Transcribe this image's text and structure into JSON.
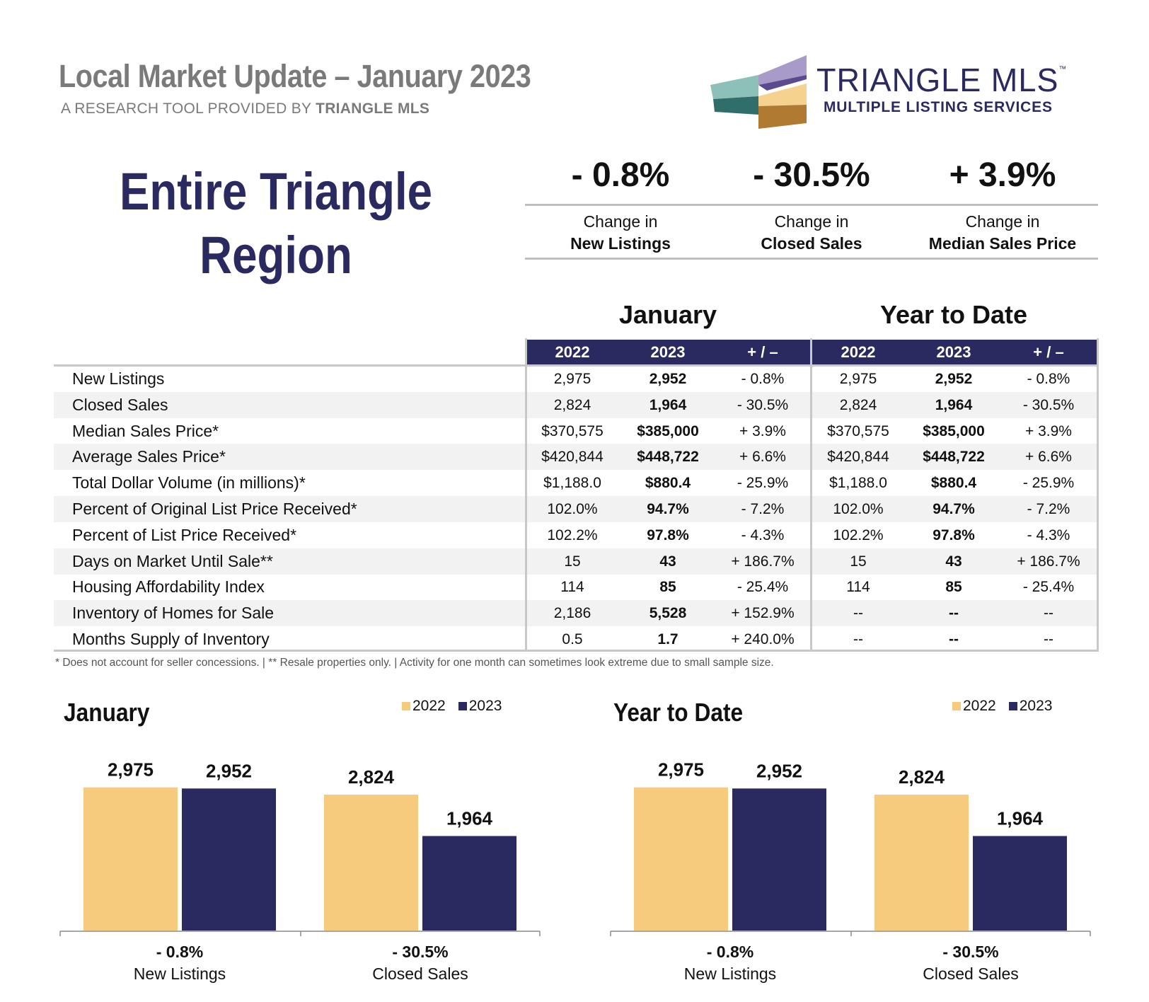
{
  "header": {
    "title": "Local Market Update – January 2023",
    "subtitle_prefix": "A RESEARCH TOOL PROVIDED BY ",
    "subtitle_brand": "TRIANGLE MLS"
  },
  "logo": {
    "name": "TRIANGLE MLS",
    "tm": "™",
    "tagline": "MULTIPLE LISTING SERVICES"
  },
  "region": {
    "line1": "Entire Triangle",
    "line2": "Region"
  },
  "summary": [
    {
      "value": "- 0.8%",
      "label_top": "Change in",
      "label_bottom": "New Listings"
    },
    {
      "value": "- 30.5%",
      "label_top": "Change in",
      "label_bottom": "Closed Sales"
    },
    {
      "value": "+ 3.9%",
      "label_top": "Change in",
      "label_bottom": "Median Sales Price"
    }
  ],
  "table": {
    "group_headers": [
      "January",
      "Year to Date"
    ],
    "columns": [
      "2022",
      "2023",
      "+ / –",
      "2022",
      "2023",
      "+ / –"
    ],
    "rows": [
      {
        "label": "New Listings",
        "cells": [
          "2,975",
          "2,952",
          "- 0.8%",
          "2,975",
          "2,952",
          "- 0.8%"
        ]
      },
      {
        "label": "Closed Sales",
        "cells": [
          "2,824",
          "1,964",
          "- 30.5%",
          "2,824",
          "1,964",
          "- 30.5%"
        ]
      },
      {
        "label": "Median Sales Price*",
        "cells": [
          "$370,575",
          "$385,000",
          "+ 3.9%",
          "$370,575",
          "$385,000",
          "+ 3.9%"
        ]
      },
      {
        "label": "Average Sales Price*",
        "cells": [
          "$420,844",
          "$448,722",
          "+ 6.6%",
          "$420,844",
          "$448,722",
          "+ 6.6%"
        ]
      },
      {
        "label": "Total Dollar Volume (in millions)*",
        "cells": [
          "$1,188.0",
          "$880.4",
          "- 25.9%",
          "$1,188.0",
          "$880.4",
          "- 25.9%"
        ]
      },
      {
        "label": "Percent of Original List Price Received*",
        "cells": [
          "102.0%",
          "94.7%",
          "- 7.2%",
          "102.0%",
          "94.7%",
          "- 7.2%"
        ]
      },
      {
        "label": "Percent of List Price Received*",
        "cells": [
          "102.2%",
          "97.8%",
          "- 4.3%",
          "102.2%",
          "97.8%",
          "- 4.3%"
        ]
      },
      {
        "label": "Days on Market Until Sale**",
        "cells": [
          "15",
          "43",
          "+ 186.7%",
          "15",
          "43",
          "+ 186.7%"
        ]
      },
      {
        "label": "Housing Affordability Index",
        "cells": [
          "114",
          "85",
          "- 25.4%",
          "114",
          "85",
          "- 25.4%"
        ]
      },
      {
        "label": "Inventory of Homes for Sale",
        "cells": [
          "2,186",
          "5,528",
          "+ 152.9%",
          "--",
          "--",
          "--"
        ]
      },
      {
        "label": "Months Supply of Inventory",
        "cells": [
          "0.5",
          "1.7",
          "+ 240.0%",
          "--",
          "--",
          "--"
        ]
      }
    ]
  },
  "footnote": "* Does not account for seller concessions.  |  ** Resale properties only.  |  Activity for one month can sometimes look extreme due to small sample size.",
  "colors": {
    "y2022": "#f6cb7e",
    "y2023": "#2b2a60",
    "navy": "#2b2a60"
  },
  "chart_data": [
    {
      "type": "bar",
      "title": "January",
      "categories": [
        "New Listings",
        "Closed Sales"
      ],
      "category_changes": [
        "- 0.8%",
        "- 30.5%"
      ],
      "series": [
        {
          "name": "2022",
          "values": [
            2975,
            2824
          ]
        },
        {
          "name": "2023",
          "values": [
            2952,
            1964
          ]
        }
      ],
      "value_labels": [
        [
          "2,975",
          "2,824"
        ],
        [
          "2,952",
          "1,964"
        ]
      ],
      "ylim": [
        0,
        3000
      ],
      "legend": "top-right",
      "grid": false
    },
    {
      "type": "bar",
      "title": "Year to Date",
      "categories": [
        "New Listings",
        "Closed Sales"
      ],
      "category_changes": [
        "- 0.8%",
        "- 30.5%"
      ],
      "series": [
        {
          "name": "2022",
          "values": [
            2975,
            2824
          ]
        },
        {
          "name": "2023",
          "values": [
            2952,
            1964
          ]
        }
      ],
      "value_labels": [
        [
          "2,975",
          "2,824"
        ],
        [
          "2,952",
          "1,964"
        ]
      ],
      "ylim": [
        0,
        3000
      ],
      "legend": "top-right",
      "grid": false
    }
  ]
}
